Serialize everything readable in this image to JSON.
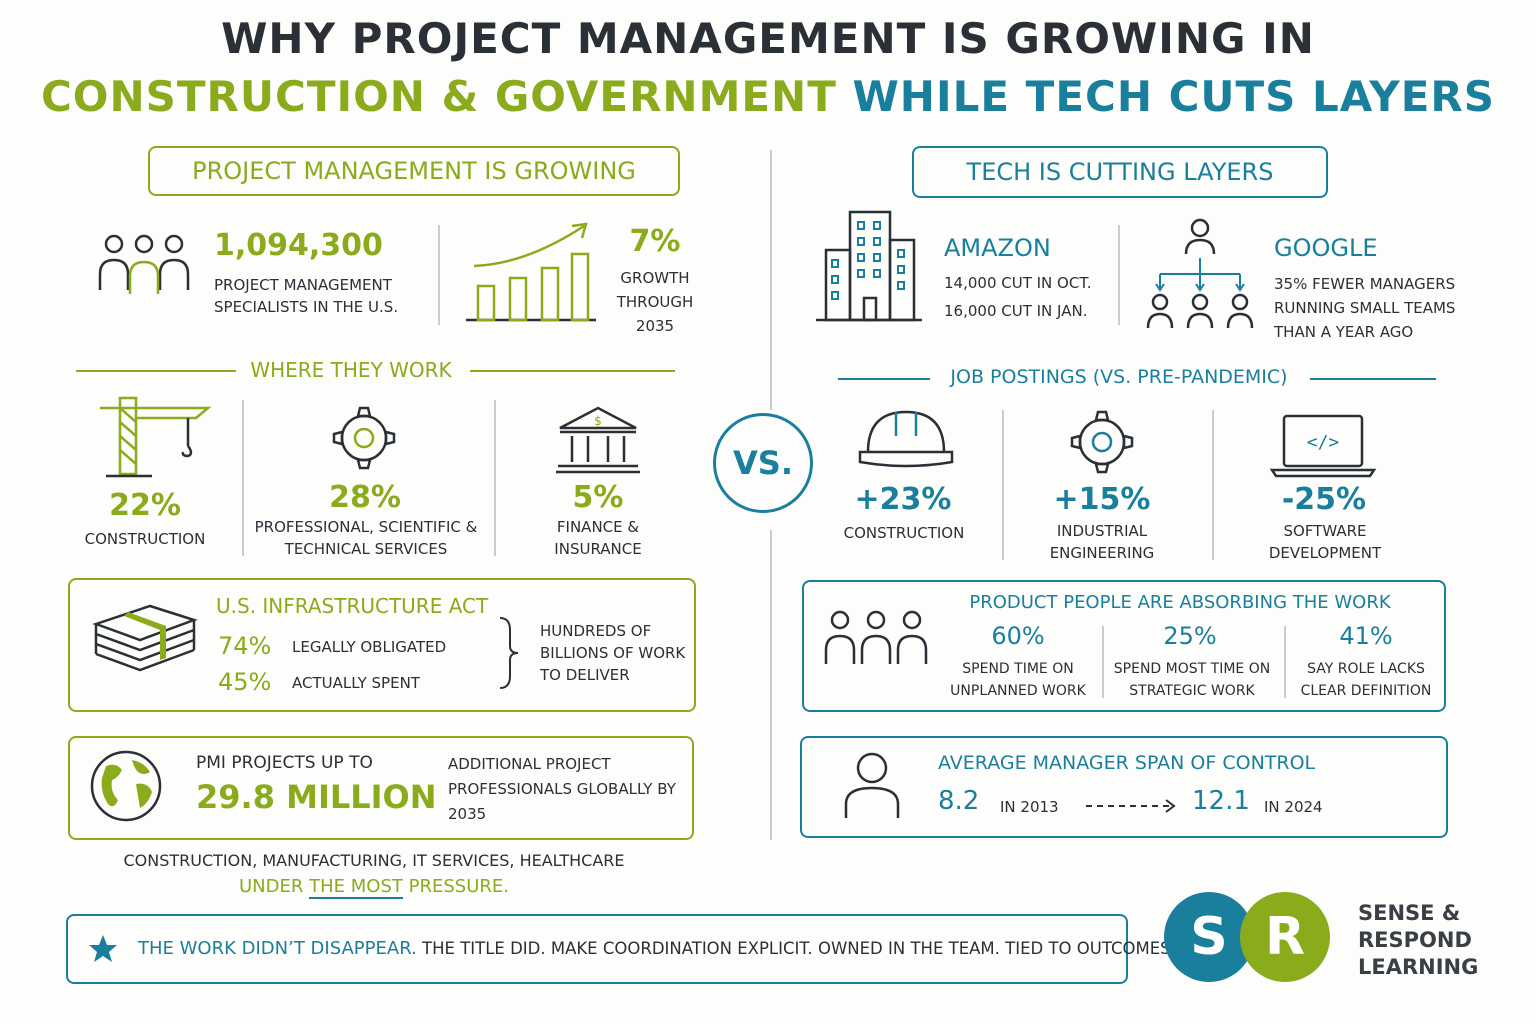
{
  "title": {
    "line1": "Why project management is growing in",
    "line2_green": "Construction & Government",
    "line2_teal": "while tech cuts layers"
  },
  "left": {
    "header": "Project management is growing",
    "specialists": {
      "number": "1,094,300",
      "label": "Project management specialists in the U.S."
    },
    "growth": {
      "percent": "7%",
      "label": "Growth through 2035"
    },
    "where_header": "Where they work",
    "sectors": [
      {
        "percent": "22%",
        "label": "Construction",
        "icon": "crane-icon"
      },
      {
        "percent": "28%",
        "label": "Professional, scientific & technical services",
        "icon": "gear-icon"
      },
      {
        "percent": "5%",
        "label": "Finance & insurance",
        "icon": "bank-icon"
      }
    ],
    "infra": {
      "title": "U.S. Infrastructure Act",
      "obligated_pct": "74%",
      "obligated_label": "Legally obligated",
      "spent_pct": "45%",
      "spent_label": "Actually spent",
      "note": "Hundreds of billions of work to deliver"
    },
    "pmi": {
      "intro": "PMI projects up to",
      "number": "29.8 Million",
      "label": "Additional project professionals globally by 2035"
    },
    "pressure": {
      "line1": "Construction, manufacturing, IT services, healthcare",
      "line2a": "under",
      "line2b": "the most",
      "line2c": "pressure."
    }
  },
  "vs_label": "VS.",
  "right": {
    "header": "Tech is cutting layers",
    "amazon": {
      "name": "Amazon",
      "line1": "14,000 cut in Oct.",
      "line2": "16,000 cut in Jan."
    },
    "google": {
      "name": "Google",
      "line1": "35% fewer managers",
      "line2": "running small teams",
      "line3": "than a year ago"
    },
    "postings_header": "Job postings (vs. pre-pandemic)",
    "postings": [
      {
        "change": "+23%",
        "label": "Construction",
        "icon": "hard-hat-icon"
      },
      {
        "change": "+15%",
        "label": "Industrial engineering",
        "icon": "gear-icon"
      },
      {
        "change": "-25%",
        "label": "Software development",
        "icon": "laptop-code-icon"
      }
    ],
    "product": {
      "title": "Product people are absorbing the work",
      "stats": [
        {
          "percent": "60%",
          "label": "Spend time on unplanned work"
        },
        {
          "percent": "25%",
          "label": "Spend most time on strategic work"
        },
        {
          "percent": "41%",
          "label": "Say role lacks clear definition"
        }
      ]
    },
    "span": {
      "title": "Average manager span of control",
      "from_value": "8.2",
      "from_year": "in 2013",
      "to_value": "12.1",
      "to_year": "in 2024"
    }
  },
  "footer": {
    "highlight": "The work didn’t disappear.",
    "rest": "The title did. Make coordination explicit. Owned in the team. Tied to outcomes."
  },
  "brand": {
    "letter1": "S",
    "letter2": "R",
    "line1": "Sense &",
    "line2": "Respond",
    "line3": "Learning"
  },
  "colors": {
    "green": "#8aab1c",
    "teal": "#1a7f9c",
    "ink": "#2b2f36"
  }
}
